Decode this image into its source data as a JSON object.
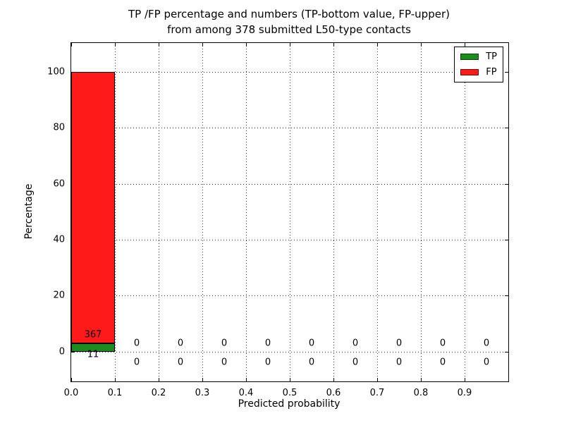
{
  "chart_data": {
    "type": "bar",
    "stacked": true,
    "title": "TP /FP percentage and numbers (TP-bottom value, FP-upper)\nfrom among 378 submitted L50-type contacts",
    "title_lines": [
      "TP /FP percentage and numbers (TP-bottom value, FP-upper)",
      "from among 378 submitted L50-type contacts"
    ],
    "xlabel": "Predicted probability",
    "ylabel": "Percentage",
    "total_contacts": 378,
    "bin_edges": [
      0.0,
      0.1,
      0.2,
      0.3,
      0.4,
      0.5,
      0.6,
      0.7,
      0.8,
      0.9,
      1.0
    ],
    "bin_centers": [
      0.05,
      0.15,
      0.25,
      0.35,
      0.45,
      0.55,
      0.65,
      0.75,
      0.85,
      0.95
    ],
    "series": [
      {
        "name": "TP",
        "color": "#1e8b1e",
        "counts": [
          11,
          0,
          0,
          0,
          0,
          0,
          0,
          0,
          0,
          0
        ],
        "percentages": [
          2.91,
          0,
          0,
          0,
          0,
          0,
          0,
          0,
          0,
          0
        ]
      },
      {
        "name": "FP",
        "color": "#ff1a1a",
        "counts": [
          367,
          0,
          0,
          0,
          0,
          0,
          0,
          0,
          0,
          0
        ],
        "percentages": [
          97.09,
          0,
          0,
          0,
          0,
          0,
          0,
          0,
          0,
          0
        ]
      }
    ],
    "xticks": [
      0.0,
      0.1,
      0.2,
      0.3,
      0.4,
      0.5,
      0.6,
      0.7,
      0.8,
      0.9
    ],
    "xtick_labels": [
      "0.0",
      "0.1",
      "0.2",
      "0.3",
      "0.4",
      "0.5",
      "0.6",
      "0.7",
      "0.8",
      "0.9"
    ],
    "yticks": [
      0,
      20,
      40,
      60,
      80,
      100
    ],
    "xlim": [
      0.0,
      1.0
    ],
    "ylim": [
      -10.7,
      110.4
    ],
    "grid": true,
    "grid_style": "dotted",
    "legend_position": "upper right",
    "label_offsets": {
      "fp_above_pct": 3,
      "tp_below_pct": -4
    }
  }
}
